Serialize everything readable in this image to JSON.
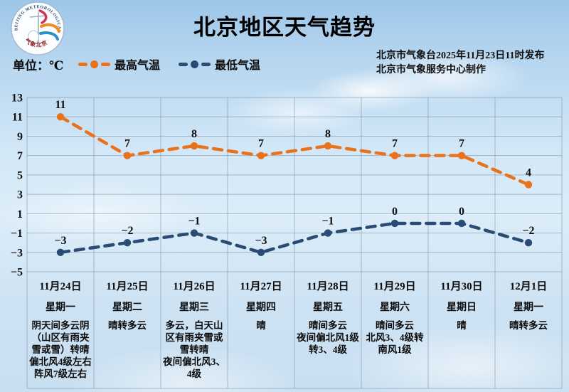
{
  "header": {
    "title": "北京地区天气趋势",
    "release_line1": "北京市气象台2025年11月23日11时发布",
    "release_line2": "北京市气象服务中心制作",
    "unit_label": "单位：℃",
    "logo": {
      "ring_text": "BEIJING METEOROLOGICAL SERVICE",
      "ring_text_cn": "气象北京"
    }
  },
  "legend": [
    {
      "label": "最高气温",
      "color": "#e9731c"
    },
    {
      "label": "最低气温",
      "color": "#2a4c74"
    }
  ],
  "chart_data": {
    "type": "line",
    "title": "北京地区天气趋势",
    "categories": [
      "11月24日",
      "11月25日",
      "11月26日",
      "11月27日",
      "11月28日",
      "11月29日",
      "11月30日",
      "12月1日"
    ],
    "weekdays": [
      "星期一",
      "星期二",
      "星期三",
      "星期四",
      "星期五",
      "星期六",
      "星期日",
      "星期一"
    ],
    "series": [
      {
        "name": "最高气温",
        "color": "#e9731c",
        "values": [
          11,
          7,
          8,
          7,
          8,
          7,
          7,
          4
        ]
      },
      {
        "name": "最低气温",
        "color": "#2a4c74",
        "values": [
          -3,
          -2,
          -1,
          -3,
          -1,
          0,
          0,
          -2
        ]
      }
    ],
    "ylabel": "℃",
    "xlabel": "",
    "ylim": [
      -5,
      13
    ],
    "yticks": [
      13,
      11,
      9,
      7,
      5,
      3,
      1,
      -1,
      -3,
      -5
    ],
    "grid": true,
    "line_style": "dashed",
    "legend_position": "top-left"
  },
  "table": {
    "days": [
      {
        "date": "11月24日",
        "weekday": "星期一",
        "desc": "阴天间多云阴（山区有雨夹雪或雪）转晴\n偏北风4级左右 阵风7级左右"
      },
      {
        "date": "11月25日",
        "weekday": "星期二",
        "desc": "晴转多云"
      },
      {
        "date": "11月26日",
        "weekday": "星期三",
        "desc": "多云，白天山区有雨夹雪或雪转晴\n夜间偏北风3、4级"
      },
      {
        "date": "11月27日",
        "weekday": "星期四",
        "desc": "晴"
      },
      {
        "date": "11月28日",
        "weekday": "星期五",
        "desc": "晴间多云\n夜间偏北风1级转3、4级"
      },
      {
        "date": "11月29日",
        "weekday": "星期六",
        "desc": "晴间多云\n北风3、4级转南风1级"
      },
      {
        "date": "11月30日",
        "weekday": "星期日",
        "desc": "晴"
      },
      {
        "date": "12月1日",
        "weekday": "星期一",
        "desc": "晴转多云"
      }
    ]
  }
}
